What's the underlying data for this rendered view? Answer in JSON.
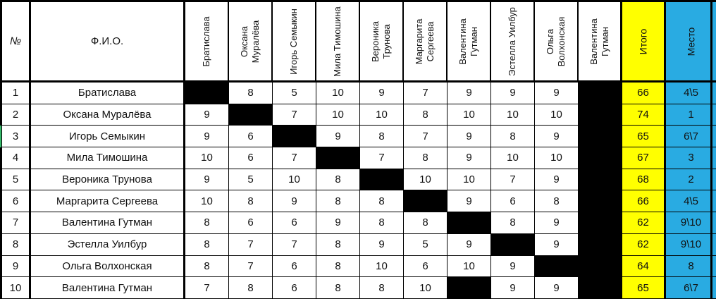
{
  "table": {
    "header": {
      "number_label": "№",
      "name_label": "Ф.И.О.",
      "players": [
        "Братислава",
        "Оксана\nМуралёва",
        "Игорь Семыкин",
        "Мила Тимошина",
        "Вероника\nТрунова",
        "Маргарита\nСергеева",
        "Валентина\nГутман",
        "Эстелла Уилбур",
        "Ольга\nВолхонская",
        "Валентина\nГутман"
      ],
      "total_label": "Итого",
      "place_label": "Место"
    },
    "rows": [
      {
        "num": "1",
        "name": "Братислава",
        "scores": [
          null,
          8,
          5,
          10,
          9,
          7,
          9,
          9,
          9,
          null
        ],
        "total": 66,
        "place": "4\\5"
      },
      {
        "num": "2",
        "name": "Оксана Муралёва",
        "scores": [
          9,
          null,
          7,
          10,
          10,
          8,
          10,
          10,
          10,
          null
        ],
        "total": 74,
        "place": "1"
      },
      {
        "num": "3",
        "name": "Игорь Семыкин",
        "scores": [
          9,
          6,
          null,
          9,
          8,
          7,
          9,
          8,
          9,
          null
        ],
        "total": 65,
        "place": "6\\7"
      },
      {
        "num": "4",
        "name": "Мила Тимошина",
        "scores": [
          10,
          6,
          7,
          null,
          7,
          8,
          9,
          10,
          10,
          null
        ],
        "total": 67,
        "place": "3"
      },
      {
        "num": "5",
        "name": "Вероника Трунова",
        "scores": [
          9,
          5,
          10,
          8,
          null,
          10,
          10,
          7,
          9,
          null
        ],
        "total": 68,
        "place": "2"
      },
      {
        "num": "6",
        "name": "Маргарита Сергеева",
        "scores": [
          10,
          8,
          9,
          8,
          8,
          null,
          9,
          6,
          8,
          null
        ],
        "total": 66,
        "place": "4\\5"
      },
      {
        "num": "7",
        "name": "Валентина Гутман",
        "scores": [
          8,
          6,
          6,
          9,
          8,
          8,
          null,
          8,
          9,
          null
        ],
        "total": 62,
        "place": "9\\10"
      },
      {
        "num": "8",
        "name": "Эстелла Уилбур",
        "scores": [
          8,
          7,
          7,
          8,
          9,
          5,
          9,
          null,
          9,
          null
        ],
        "total": 62,
        "place": "9\\10"
      },
      {
        "num": "9",
        "name": "Ольга Волхонская",
        "scores": [
          8,
          7,
          6,
          8,
          10,
          6,
          10,
          9,
          null,
          null
        ],
        "total": 64,
        "place": "8"
      },
      {
        "num": "10",
        "name": "Валентина Гутман",
        "scores": [
          7,
          8,
          6,
          8,
          8,
          10,
          null,
          9,
          9,
          null
        ],
        "total": 65,
        "place": "6\\7"
      }
    ],
    "selected_row_num": "3"
  },
  "colors": {
    "total_column_bg": "#ffff00",
    "place_column_bg": "#29abe2",
    "blackout_cell": "#000000",
    "grid_line": "#000000",
    "selection_marker": "#35b96a"
  }
}
